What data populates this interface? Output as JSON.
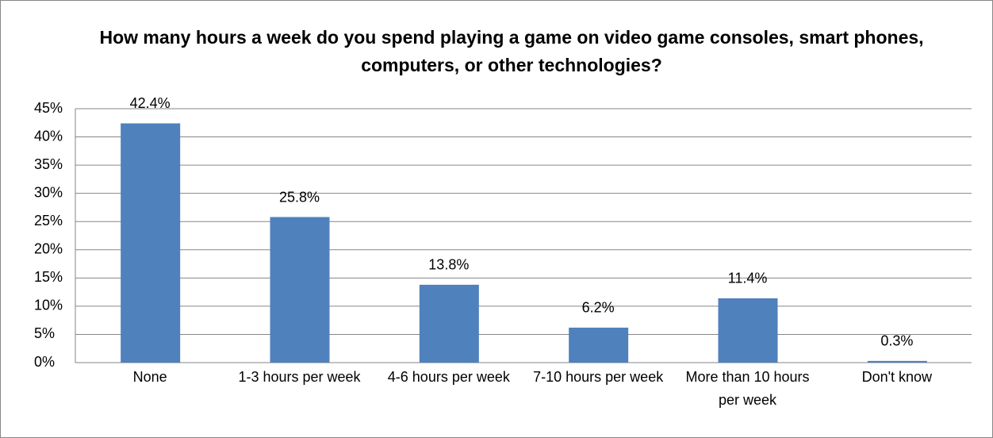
{
  "chart_data": {
    "type": "bar",
    "title": "How many hours a week do you spend playing a game on video game consoles, smart phones, computers, or other technologies?",
    "categories": [
      "None",
      "1-3 hours per week",
      "4-6 hours per week",
      "7-10 hours per week",
      "More than 10 hours per week",
      "Don't know"
    ],
    "values": [
      42.4,
      25.8,
      13.8,
      6.2,
      11.4,
      0.3
    ],
    "value_labels": [
      "42.4%",
      "25.8%",
      "13.8%",
      "6.2%",
      "11.4%",
      "0.3%"
    ],
    "color": "#4f81bd",
    "ylim": [
      0,
      45
    ],
    "yticks": [
      {
        "value": 0,
        "label": "0%"
      },
      {
        "value": 5,
        "label": "5%"
      },
      {
        "value": 10,
        "label": "10%"
      },
      {
        "value": 15,
        "label": "15%"
      },
      {
        "value": 20,
        "label": "20%"
      },
      {
        "value": 25,
        "label": "25%"
      },
      {
        "value": 30,
        "label": "30%"
      },
      {
        "value": 35,
        "label": "35%"
      },
      {
        "value": 40,
        "label": "40%"
      },
      {
        "value": 45,
        "label": "45%"
      }
    ],
    "grid": true
  }
}
